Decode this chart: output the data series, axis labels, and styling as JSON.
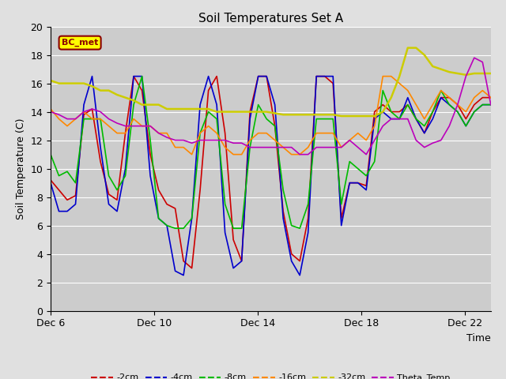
{
  "title": "Soil Temperatures Set A",
  "xlabel": "Time",
  "ylabel": "Soil Temperature (C)",
  "ylim": [
    0,
    20
  ],
  "xlim": [
    0,
    17
  ],
  "fig_bg": "#e0e0e0",
  "plot_bg": "#cccccc",
  "annotation_text": "BC_met",
  "annotation_bg": "#ffff00",
  "annotation_border": "#8b0000",
  "annotation_text_color": "#8b0000",
  "xtick_labels": [
    "Dec 6",
    "Dec 10",
    "Dec 14",
    "Dec 18",
    "Dec 22"
  ],
  "xtick_positions": [
    0,
    4,
    8,
    12,
    16
  ],
  "ytick_positions": [
    0,
    2,
    4,
    6,
    8,
    10,
    12,
    14,
    16,
    18,
    20
  ],
  "legend_labels": [
    "-2cm",
    "-4cm",
    "-8cm",
    "-16cm",
    "-32cm",
    "Theta_Temp"
  ],
  "line_colors": [
    "#cc0000",
    "#0000cc",
    "#00bb00",
    "#ff8800",
    "#cccc00",
    "#bb00bb"
  ],
  "line_widths": [
    1.2,
    1.2,
    1.2,
    1.2,
    1.8,
    1.2
  ],
  "series": {
    "cm2": [
      9.2,
      8.5,
      7.8,
      8.1,
      13.8,
      14.2,
      10.5,
      8.2,
      7.8,
      12.5,
      16.5,
      15.5,
      11.0,
      8.5,
      7.5,
      7.2,
      3.5,
      3.0,
      8.5,
      15.5,
      16.5,
      12.5,
      5.0,
      3.5,
      14.0,
      16.5,
      16.5,
      13.0,
      7.0,
      4.0,
      3.5,
      6.5,
      16.5,
      16.5,
      16.0,
      6.5,
      9.0,
      9.0,
      8.8,
      14.0,
      14.5,
      14.0,
      14.0,
      14.5,
      13.5,
      12.5,
      14.0,
      15.0,
      15.0,
      14.5,
      13.5,
      14.5,
      15.0,
      15.0
    ],
    "cm4": [
      9.0,
      7.0,
      7.0,
      7.5,
      14.5,
      16.5,
      11.5,
      7.5,
      7.0,
      10.0,
      16.5,
      16.5,
      9.5,
      6.5,
      6.0,
      2.8,
      2.5,
      6.5,
      14.5,
      16.5,
      14.5,
      5.5,
      3.0,
      3.5,
      13.5,
      16.5,
      16.5,
      14.5,
      6.5,
      3.5,
      2.5,
      5.5,
      16.5,
      16.5,
      16.5,
      6.0,
      9.0,
      9.0,
      8.5,
      13.5,
      14.0,
      13.5,
      13.5,
      15.0,
      13.5,
      12.5,
      13.5,
      15.0,
      14.5,
      14.0,
      13.0,
      14.0,
      14.5,
      14.5
    ],
    "cm8": [
      11.0,
      9.5,
      9.8,
      9.0,
      13.5,
      13.5,
      13.5,
      9.5,
      8.5,
      9.5,
      14.5,
      16.5,
      12.0,
      6.5,
      6.0,
      5.8,
      5.8,
      6.5,
      12.5,
      14.0,
      13.5,
      7.5,
      5.8,
      5.8,
      11.5,
      14.5,
      13.5,
      13.0,
      8.5,
      6.0,
      5.8,
      7.5,
      13.5,
      13.5,
      13.5,
      7.5,
      10.5,
      10.0,
      9.5,
      10.5,
      15.5,
      14.0,
      13.5,
      14.5,
      13.5,
      13.0,
      14.0,
      15.5,
      14.5,
      14.0,
      13.0,
      14.0,
      14.5,
      14.5
    ],
    "cm16": [
      14.2,
      13.5,
      13.0,
      13.5,
      14.0,
      13.5,
      13.5,
      13.0,
      12.5,
      12.5,
      13.5,
      13.0,
      13.0,
      12.5,
      12.5,
      11.5,
      11.5,
      11.0,
      12.5,
      13.0,
      12.5,
      11.5,
      11.0,
      11.0,
      12.0,
      12.5,
      12.5,
      12.0,
      11.5,
      11.0,
      11.0,
      11.5,
      12.5,
      12.5,
      12.5,
      11.5,
      12.0,
      12.5,
      12.0,
      13.0,
      16.5,
      16.5,
      16.0,
      15.5,
      14.5,
      13.5,
      14.5,
      15.5,
      15.0,
      14.5,
      14.0,
      15.0,
      15.5,
      15.0
    ],
    "cm32": [
      16.2,
      16.0,
      16.0,
      16.0,
      16.0,
      15.8,
      15.5,
      15.5,
      15.2,
      15.0,
      14.8,
      14.5,
      14.5,
      14.5,
      14.2,
      14.2,
      14.2,
      14.2,
      14.2,
      14.2,
      14.0,
      14.0,
      14.0,
      14.0,
      14.0,
      14.0,
      14.0,
      13.9,
      13.8,
      13.8,
      13.8,
      13.8,
      13.8,
      13.8,
      13.8,
      13.7,
      13.7,
      13.7,
      13.7,
      13.7,
      14.0,
      15.0,
      16.5,
      18.5,
      18.5,
      18.0,
      17.2,
      17.0,
      16.8,
      16.7,
      16.6,
      16.7,
      16.7,
      16.7
    ],
    "theta": [
      14.0,
      13.8,
      13.5,
      13.5,
      14.0,
      14.2,
      14.0,
      13.5,
      13.2,
      13.0,
      13.0,
      13.0,
      13.0,
      12.5,
      12.2,
      12.0,
      12.0,
      11.8,
      12.0,
      12.0,
      12.0,
      12.0,
      11.8,
      11.8,
      11.5,
      11.5,
      11.5,
      11.5,
      11.5,
      11.5,
      11.0,
      11.0,
      11.5,
      11.5,
      11.5,
      11.5,
      12.0,
      11.5,
      11.0,
      12.0,
      13.0,
      13.5,
      13.5,
      13.5,
      12.0,
      11.5,
      11.8,
      12.0,
      13.0,
      14.5,
      16.5,
      17.8,
      17.5,
      14.5
    ]
  }
}
